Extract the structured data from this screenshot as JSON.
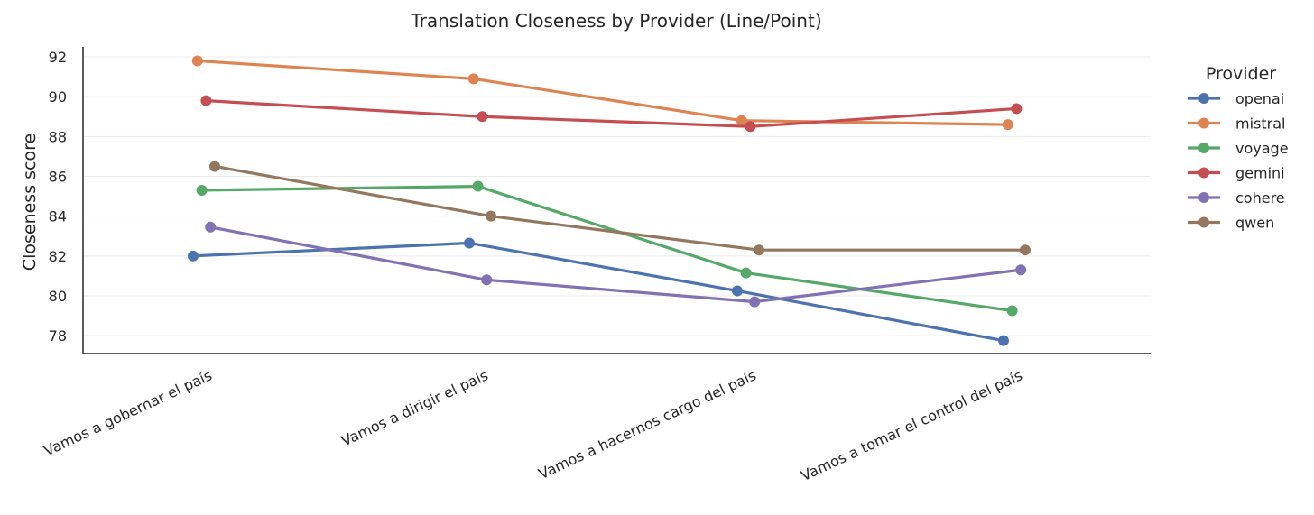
{
  "chart_data": {
    "type": "line",
    "title": "Translation Closeness by Provider (Line/Point)",
    "xlabel": "",
    "ylabel": "Closeness score",
    "categories": [
      "Vamos a gobernar el país",
      "Vamos a dirigir el país",
      "Vamos a hacernos cargo del país",
      "Vamos a tomar el control del país"
    ],
    "ylim": [
      77.1,
      92.5
    ],
    "yticks": [
      78,
      80,
      82,
      84,
      86,
      88,
      90,
      92
    ],
    "grid": "horizontal",
    "legend": {
      "title": "Provider",
      "placement": "right"
    },
    "series": [
      {
        "name": "openai",
        "color": "#4c72b0",
        "values": [
          82.0,
          82.65,
          80.25,
          77.75
        ]
      },
      {
        "name": "mistral",
        "color": "#dd8452",
        "values": [
          91.8,
          90.9,
          88.8,
          88.6
        ]
      },
      {
        "name": "voyage",
        "color": "#55a868",
        "values": [
          85.3,
          85.5,
          81.15,
          79.25
        ]
      },
      {
        "name": "gemini",
        "color": "#c44e52",
        "values": [
          89.8,
          89.0,
          88.5,
          89.4
        ]
      },
      {
        "name": "cohere",
        "color": "#8172b3",
        "values": [
          83.45,
          80.8,
          79.7,
          81.3
        ]
      },
      {
        "name": "qwen",
        "color": "#937860",
        "values": [
          86.5,
          84.0,
          82.3,
          82.3
        ]
      }
    ]
  }
}
